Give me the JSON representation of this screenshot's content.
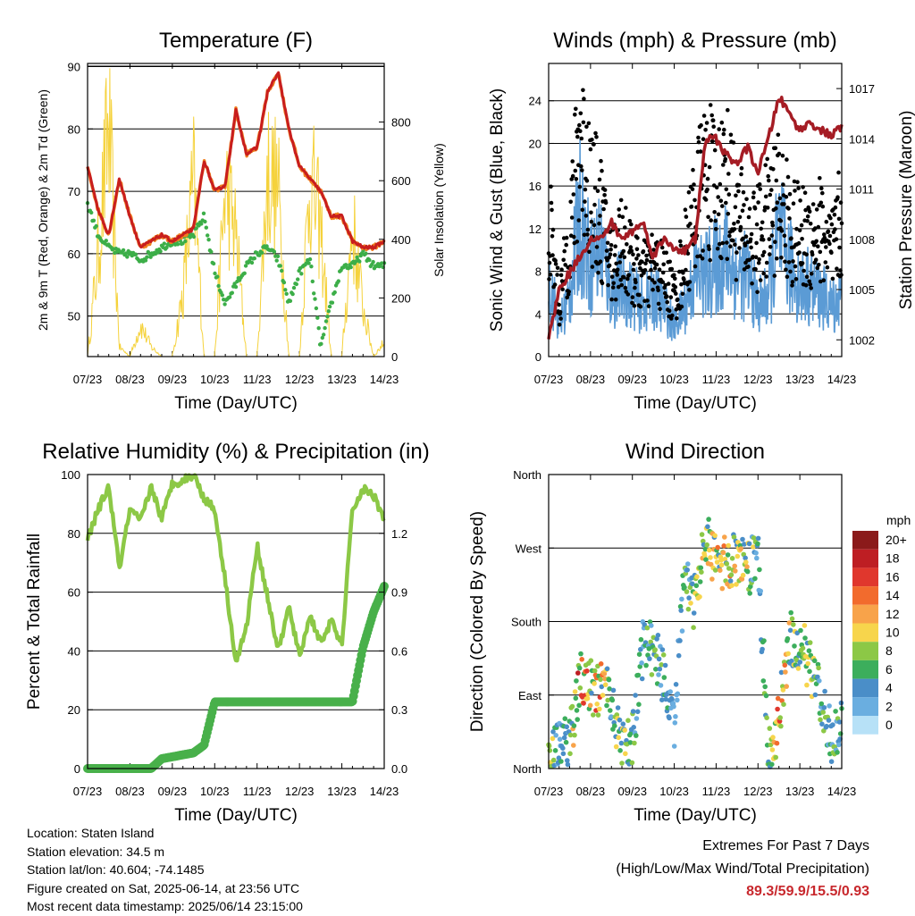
{
  "x_ticks": [
    "07/23",
    "08/23",
    "09/23",
    "10/23",
    "11/23",
    "12/23",
    "13/23",
    "14/23"
  ],
  "x_label": "Time (Day/UTC)",
  "colors": {
    "temp_2m": "#f08020",
    "temp_9m": "#c81e1e",
    "dewpoint": "#3cae48",
    "solar": "#f5d23c",
    "wind": "#5b9bd5",
    "gust": "#000000",
    "pressure": "#a51c24",
    "rh": "#8cc846",
    "precip": "#48b04a",
    "extremes": "#c8282d"
  },
  "info": {
    "location": "Location: Staten Island",
    "elevation": "Station elevation: 34.5 m",
    "latlon": "Station lat/lon: 40.604; -74.1485",
    "created": "Figure created on Sat, 2025-06-14, at 23:56 UTC",
    "recent": "Most recent data timestamp: 2025/06/14 23:15:00"
  },
  "extremes": {
    "title": "Extremes For Past 7 Days",
    "subtitle": "(High/Low/Max Wind/Total Precipitation)",
    "values": "89.3/59.9/15.5/0.93"
  },
  "chart_data": [
    {
      "type": "line",
      "title": "Temperature (F)",
      "xlabel": "Time (Day/UTC)",
      "ylabel": "2m & 9m T (Red, Orange) & 2m Td (Green)",
      "ylabel_right": "Solar Insolation (Yellow)",
      "ylim": [
        43.5,
        90.5
      ],
      "yticks": [
        50,
        60,
        70,
        80,
        90
      ],
      "ylim_right": [
        0,
        1000
      ],
      "yticks_right": [
        0,
        200,
        400,
        600,
        800
      ],
      "x": [
        7.0,
        7.25,
        7.5,
        7.75,
        8.0,
        8.25,
        8.5,
        8.75,
        9.0,
        9.25,
        9.5,
        9.75,
        10.0,
        10.25,
        10.5,
        10.75,
        11.0,
        11.25,
        11.5,
        11.75,
        12.0,
        12.25,
        12.5,
        12.75,
        13.0,
        13.25,
        13.5,
        13.75,
        14.0
      ],
      "series": [
        {
          "key": "temp",
          "values": [
            74,
            67,
            63,
            72,
            66,
            61,
            62,
            63,
            62,
            63,
            64,
            75,
            70,
            71,
            83,
            76,
            77,
            86,
            89,
            80,
            74,
            72,
            70,
            66,
            66,
            62,
            61,
            61,
            62
          ]
        },
        {
          "key": "dewpoint",
          "values": [
            68,
            63,
            61,
            60,
            60,
            59,
            60,
            61,
            62,
            62,
            63,
            66,
            57,
            52,
            55,
            58,
            60,
            61,
            59,
            52,
            57,
            59,
            45,
            52,
            58,
            58,
            60,
            58,
            58
          ]
        },
        {
          "key": "solar",
          "values": [
            0,
            420,
            960,
            40,
            0,
            130,
            40,
            0,
            0,
            260,
            720,
            0,
            0,
            700,
            500,
            0,
            0,
            760,
            680,
            0,
            0,
            740,
            520,
            0,
            0,
            540,
            200,
            0,
            60
          ]
        }
      ]
    },
    {
      "type": "line",
      "title": "Winds (mph) & Pressure (mb)",
      "xlabel": "Time (Day/UTC)",
      "ylabel": "Sonic Wind & Gust (Blue, Black)",
      "ylabel_right": "Station Pressure (Maroon)",
      "ylim": [
        0,
        27.5
      ],
      "yticks": [
        0,
        4,
        8,
        12,
        16,
        20,
        24
      ],
      "ylim_right": [
        1001.0,
        1018.5
      ],
      "yticks_right": [
        1002,
        1005,
        1008,
        1011,
        1014,
        1017
      ],
      "x": [
        7.0,
        7.25,
        7.5,
        7.75,
        8.0,
        8.25,
        8.5,
        8.75,
        9.0,
        9.25,
        9.5,
        9.75,
        10.0,
        10.25,
        10.5,
        10.75,
        11.0,
        11.25,
        11.5,
        11.75,
        12.0,
        12.25,
        12.5,
        12.75,
        13.0,
        13.25,
        13.5,
        13.75,
        14.0
      ],
      "series": [
        {
          "key": "wind",
          "values": [
            8,
            3,
            6,
            14,
            9,
            11,
            6,
            7,
            6,
            5,
            6,
            5,
            3,
            5,
            8,
            8,
            9,
            10,
            8,
            8,
            5,
            6,
            12,
            9,
            7,
            7,
            6,
            5,
            6
          ]
        },
        {
          "key": "gust",
          "values": [
            14,
            5,
            12,
            22,
            17,
            14,
            9,
            12,
            9,
            8,
            9,
            8,
            6,
            10,
            15,
            18,
            17,
            18,
            14,
            12,
            12,
            14,
            16,
            13,
            12,
            12,
            13,
            10,
            14
          ]
        },
        {
          "key": "pressure",
          "values": [
            1002.0,
            1005.0,
            1006.0,
            1007.0,
            1008.0,
            1008.0,
            1009.0,
            1008.0,
            1008.5,
            1009.0,
            1007.0,
            1008.0,
            1007.5,
            1007.3,
            1008.0,
            1014.0,
            1014.0,
            1013.0,
            1012.5,
            1013.5,
            1012.0,
            1014.0,
            1016.5,
            1015.5,
            1014.5,
            1015.0,
            1014.5,
            1014.2,
            1014.7
          ]
        }
      ]
    },
    {
      "type": "line",
      "title": "Relative Humidity (%) & Precipitation (in)",
      "xlabel": "Time (Day/UTC)",
      "ylabel": "Percent & Total Rainfall",
      "ylim": [
        0,
        100
      ],
      "yticks": [
        0,
        20,
        40,
        60,
        80,
        100
      ],
      "ylim_right": [
        0,
        1.5
      ],
      "yticks_right": [
        0.0,
        0.3,
        0.6,
        0.9,
        1.2
      ],
      "x": [
        7.0,
        7.25,
        7.5,
        7.75,
        8.0,
        8.25,
        8.5,
        8.75,
        9.0,
        9.25,
        9.5,
        9.75,
        10.0,
        10.25,
        10.5,
        10.75,
        11.0,
        11.25,
        11.5,
        11.75,
        12.0,
        12.25,
        12.5,
        12.75,
        13.0,
        13.25,
        13.5,
        13.75,
        14.0
      ],
      "series": [
        {
          "key": "rh",
          "values": [
            78,
            88,
            96,
            68,
            88,
            84,
            96,
            85,
            97,
            98,
            100,
            92,
            88,
            64,
            36,
            48,
            76,
            58,
            40,
            55,
            38,
            52,
            43,
            50,
            42,
            88,
            95,
            93,
            85
          ]
        },
        {
          "key": "precip",
          "values": [
            0,
            0,
            0,
            0,
            0,
            0,
            0,
            0.05,
            0.06,
            0.07,
            0.08,
            0.12,
            0.34,
            0.34,
            0.34,
            0.34,
            0.34,
            0.34,
            0.34,
            0.34,
            0.34,
            0.34,
            0.34,
            0.34,
            0.34,
            0.34,
            0.62,
            0.8,
            0.93
          ]
        }
      ]
    },
    {
      "type": "scatter",
      "title": "Wind Direction",
      "xlabel": "Time (Day/UTC)",
      "ylabel": "Direction (Colored By Speed)",
      "yticks_labels": [
        "North",
        "East",
        "South",
        "West",
        "North"
      ],
      "ylim": [
        0,
        360
      ],
      "legend_title": "mph",
      "legend_labels": [
        "20+",
        "18",
        "16",
        "14",
        "12",
        "10",
        "8",
        "6",
        "4",
        "2",
        "0"
      ],
      "legend_colors": [
        "#8b1a1a",
        "#be1e23",
        "#e0372d",
        "#f26b2d",
        "#f8a34a",
        "#f7d54c",
        "#8cc846",
        "#3cae5c",
        "#4a8ec8",
        "#6aaee0",
        "#b7e1f7"
      ],
      "x": [
        7.0,
        7.25,
        7.5,
        7.75,
        8.0,
        8.25,
        8.5,
        8.75,
        9.0,
        9.25,
        9.5,
        9.75,
        10.0,
        10.25,
        10.5,
        10.75,
        11.0,
        11.25,
        11.5,
        11.75,
        12.0,
        12.25,
        12.5,
        12.75,
        13.0,
        13.25,
        13.5,
        13.75,
        14.0
      ],
      "series": [
        {
          "key": "direction",
          "values": [
            10,
            25,
            30,
            110,
            100,
            95,
            90,
            20,
            30,
            150,
            150,
            110,
            50,
            240,
            200,
            280,
            250,
            250,
            260,
            240,
            270,
            10,
            60,
            160,
            150,
            130,
            80,
            40,
            60
          ]
        }
      ]
    }
  ]
}
